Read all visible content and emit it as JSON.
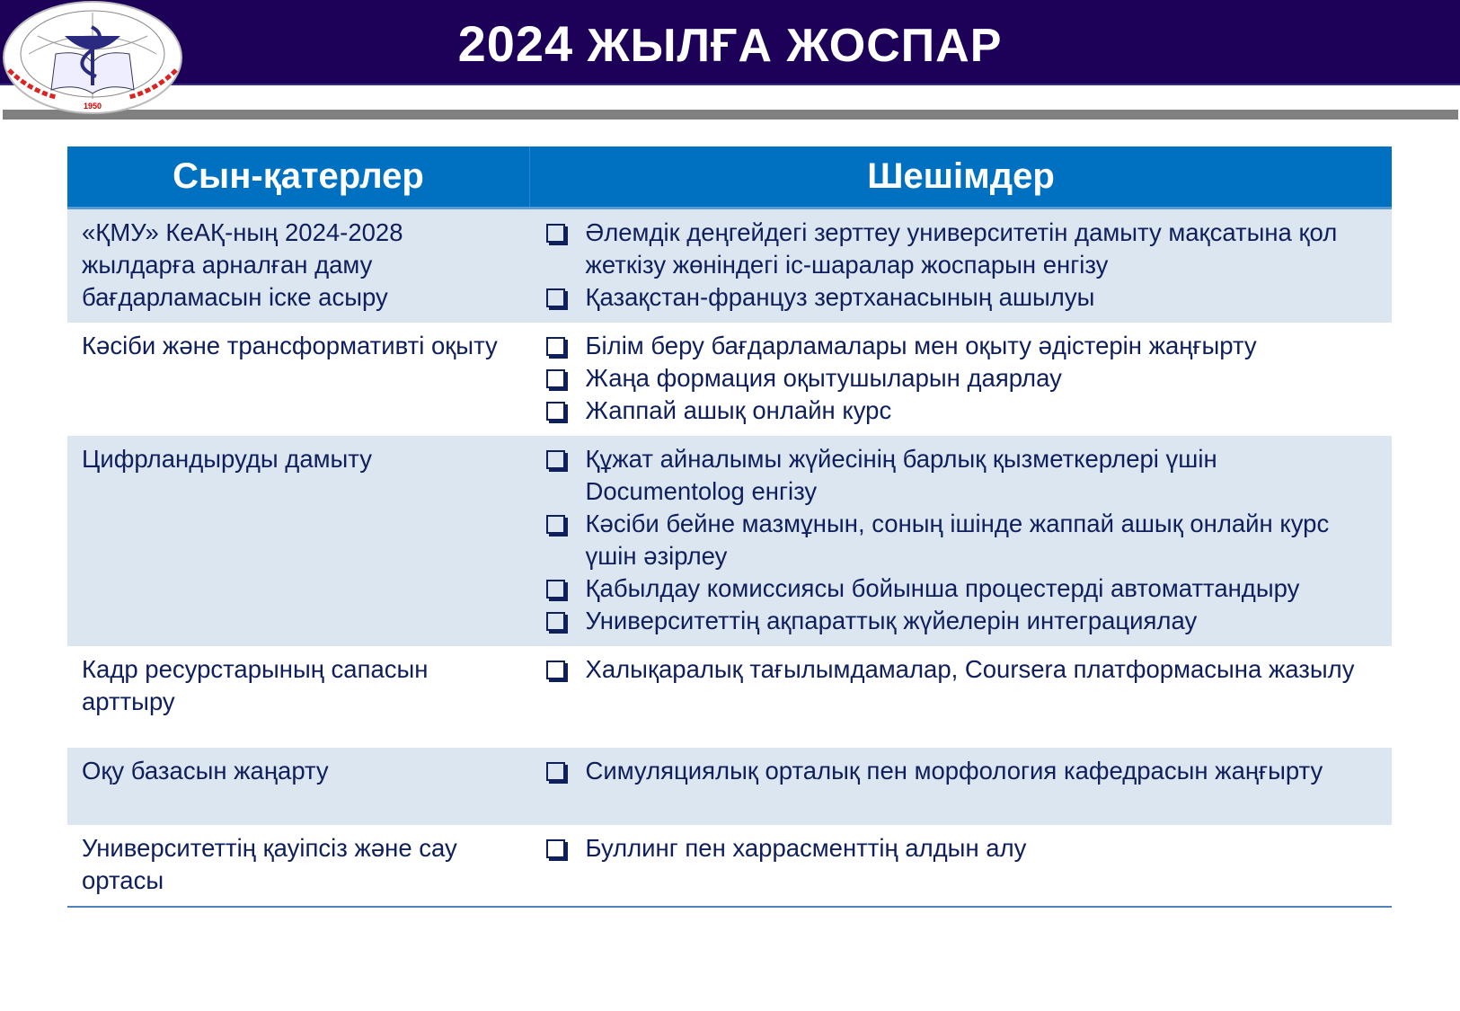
{
  "header": {
    "year": "2024",
    "title": "ЖЫЛҒА ЖОСПАР"
  },
  "logo": {
    "text": "ҚАРАҒАНДЫ МЕДИЦИНА УНИВЕРСИТЕТІ",
    "year": "1950"
  },
  "colors": {
    "header_bg": "#1d0058",
    "table_header": "#0070c0",
    "row_alt": "#dce6f1",
    "text": "#0f1f5c"
  },
  "table": {
    "headers": [
      "Сын-қатерлер",
      "Шешімдер"
    ],
    "rows": [
      {
        "challenge": "«ҚМУ» КеАҚ-ның 2024-2028 жылдарға арналған даму бағдарламасын іске асыру",
        "solutions": [
          "Әлемдік деңгейдегі зерттеу университетін дамыту мақсатына қол жеткізу жөніндегі іс-шаралар жоспарын енгізу",
          "Қазақстан-француз зертханасының ашылуы"
        ]
      },
      {
        "challenge": "Кәсіби және трансформативті оқыту",
        "solutions": [
          "Білім беру бағдарламалары мен оқыту әдістерін жаңғырту",
          "Жаңа формация оқытушыларын даярлау",
          "Жаппай ашық онлайн курс"
        ]
      },
      {
        "challenge": "Цифрландыруды дамыту",
        "solutions": [
          "Құжат айналымы жүйесінің барлық қызметкерлері үшін Documentolog енгізу",
          "Кәсіби бейне мазмұнын, соның ішінде жаппай ашық онлайн курс үшін әзірлеу",
          "Қабылдау комиссиясы бойынша процестерді автоматтандыру",
          "Университеттің ақпараттық жүйелерін интеграциялау"
        ]
      },
      {
        "challenge": "Кадр ресурстарының сапасын арттыру",
        "solutions": [
          "Халықаралық тағылымдамалар, Coursera платформасына жазылу"
        ]
      },
      {
        "challenge": "Оқу базасын жаңарту",
        "solutions": [
          "Симуляциялық орталық пен морфология кафедрасын жаңғырту"
        ]
      },
      {
        "challenge": "Университеттің қауіпсіз және сау ортасы",
        "solutions": [
          "Буллинг пен харрасменттің алдын алу"
        ]
      }
    ]
  }
}
